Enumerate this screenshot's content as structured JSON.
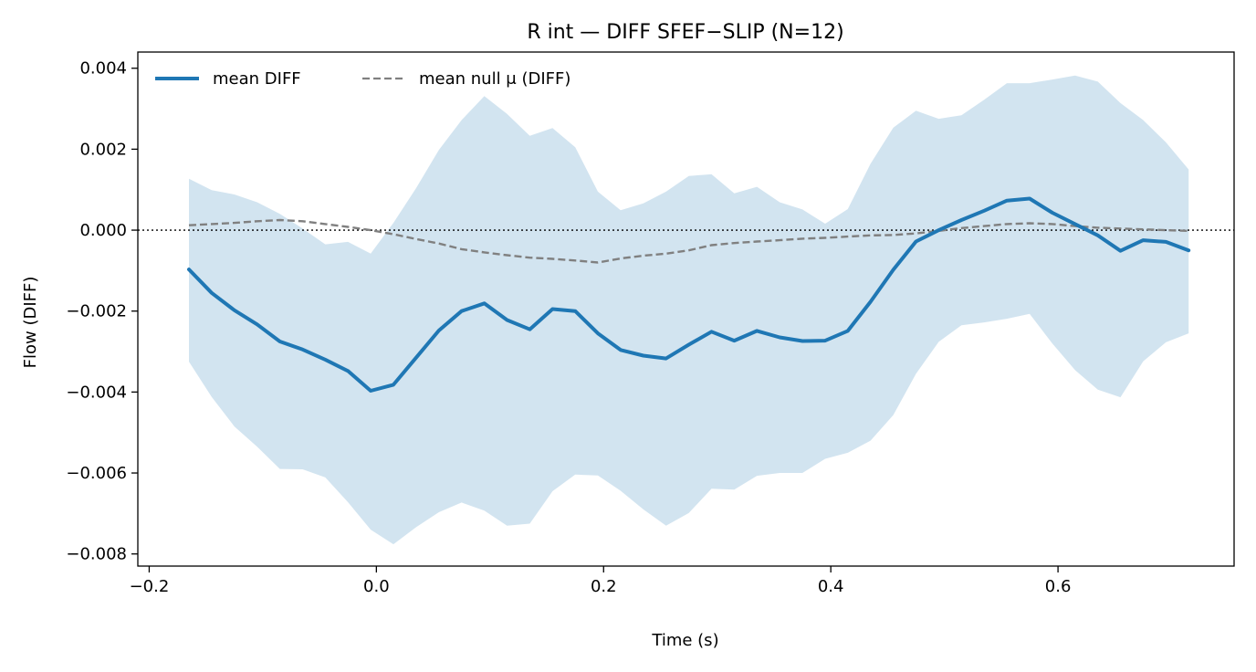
{
  "chart_data": {
    "type": "line",
    "title": "R int — DIFF SFEF−SLIP (N=12)",
    "xlabel": "Time (s)",
    "ylabel": "Flow (DIFF)",
    "xlim": [
      -0.21,
      0.755
    ],
    "ylim": [
      -0.0083,
      0.0044
    ],
    "xticks": [
      -0.2,
      0.0,
      0.2,
      0.4,
      0.6
    ],
    "xtick_labels": [
      "−0.2",
      "0.0",
      "0.2",
      "0.4",
      "0.6"
    ],
    "yticks": [
      0.004,
      0.002,
      0.0,
      -0.002,
      -0.004,
      -0.006,
      -0.008
    ],
    "ytick_labels": [
      "0.004",
      "0.002",
      "0.000",
      "−0.002",
      "−0.004",
      "−0.006",
      "−0.008"
    ],
    "grid": false,
    "legend_position": "top-left",
    "reference_line": {
      "y": 0.0,
      "style": "dotted",
      "color": "#000000"
    },
    "colors": {
      "mean": "#1f77b4",
      "band": "#1f77b4",
      "null": "#808080"
    },
    "x": [
      -0.165,
      -0.145,
      -0.125,
      -0.105,
      -0.085,
      -0.065,
      -0.045,
      -0.025,
      -0.005,
      0.015,
      0.035,
      0.055,
      0.075,
      0.095,
      0.115,
      0.135,
      0.155,
      0.175,
      0.195,
      0.215,
      0.235,
      0.255,
      0.275,
      0.295,
      0.315,
      0.335,
      0.355,
      0.375,
      0.395,
      0.415,
      0.435,
      0.455,
      0.475,
      0.495,
      0.515,
      0.535,
      0.555,
      0.575,
      0.595,
      0.615,
      0.635,
      0.655,
      0.675,
      0.695,
      0.715
    ],
    "series": [
      {
        "name": "mean DIFF",
        "style": "solid",
        "values": [
          -0.00097,
          -0.00155,
          -0.00198,
          -0.00233,
          -0.00275,
          -0.00295,
          -0.0032,
          -0.00348,
          -0.00397,
          -0.00382,
          -0.00315,
          -0.00248,
          -0.002,
          -0.00181,
          -0.00222,
          -0.00245,
          -0.00195,
          -0.002,
          -0.00255,
          -0.00296,
          -0.0031,
          -0.00317,
          -0.00283,
          -0.00251,
          -0.00273,
          -0.00249,
          -0.00265,
          -0.00274,
          -0.00273,
          -0.00249,
          -0.00177,
          -0.00098,
          -0.00028,
          0.0,
          0.00025,
          0.00048,
          0.00073,
          0.00078,
          0.00043,
          0.00015,
          -0.00013,
          -0.00051,
          -0.00025,
          -0.00029,
          -0.0005
        ]
      },
      {
        "name": "mean null μ (DIFF)",
        "style": "dashed",
        "values": [
          0.00012,
          0.00015,
          0.00018,
          0.00022,
          0.00025,
          0.00022,
          0.00015,
          8e-05,
          0.0,
          -0.0001,
          -0.00022,
          -0.00033,
          -0.00047,
          -0.00055,
          -0.00062,
          -0.00068,
          -0.00071,
          -0.00075,
          -0.0008,
          -0.0007,
          -0.00063,
          -0.00058,
          -0.0005,
          -0.00037,
          -0.00032,
          -0.00028,
          -0.00025,
          -0.00021,
          -0.00019,
          -0.00016,
          -0.00013,
          -0.00012,
          -8e-05,
          -2e-05,
          5e-05,
          0.0001,
          0.00015,
          0.00017,
          0.00015,
          0.0001,
          6e-05,
          4e-05,
          2e-05,
          0.0,
          -2e-05
        ]
      }
    ],
    "band": {
      "upper": [
        0.00127,
        0.00099,
        0.00088,
        0.00069,
        0.0004,
        4e-05,
        -0.00035,
        -0.00029,
        -0.00058,
        0.00018,
        0.00104,
        0.00198,
        0.00272,
        0.00331,
        0.00287,
        0.00233,
        0.00252,
        0.00205,
        0.00095,
        0.00049,
        0.00066,
        0.00095,
        0.00134,
        0.00138,
        0.00091,
        0.00107,
        0.00069,
        0.00051,
        0.00016,
        0.00052,
        0.00164,
        0.00253,
        0.00295,
        0.00275,
        0.00284,
        0.00322,
        0.00363,
        0.00363,
        0.00372,
        0.00382,
        0.00367,
        0.00314,
        0.00272,
        0.00217,
        0.0015
      ],
      "lower": [
        -0.00325,
        -0.00412,
        -0.00485,
        -0.00535,
        -0.0059,
        -0.00591,
        -0.00611,
        -0.00672,
        -0.0074,
        -0.00776,
        -0.00734,
        -0.00697,
        -0.00673,
        -0.00693,
        -0.0073,
        -0.00725,
        -0.00645,
        -0.00604,
        -0.00606,
        -0.00644,
        -0.0069,
        -0.0073,
        -0.00699,
        -0.00639,
        -0.00641,
        -0.00607,
        -0.006,
        -0.006,
        -0.00565,
        -0.0055,
        -0.0052,
        -0.00457,
        -0.00355,
        -0.00276,
        -0.00235,
        -0.00228,
        -0.00219,
        -0.00207,
        -0.0028,
        -0.00346,
        -0.00394,
        -0.00413,
        -0.00324,
        -0.00277,
        -0.00255
      ]
    },
    "legend": {
      "items": [
        {
          "label": "mean DIFF",
          "style": "solid"
        },
        {
          "label": "mean null μ (DIFF)",
          "style": "dashed"
        }
      ]
    }
  }
}
